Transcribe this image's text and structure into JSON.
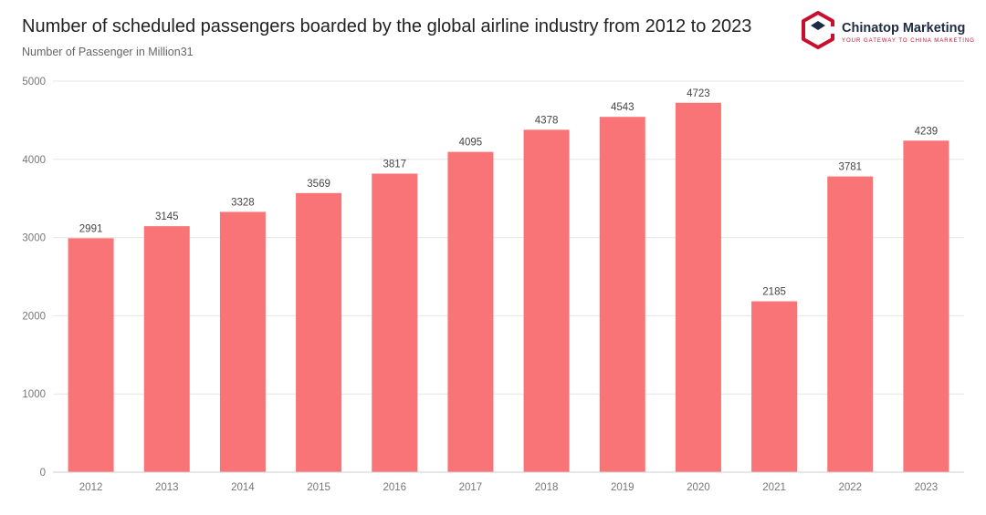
{
  "header": {
    "title": "Number of scheduled passengers boarded by the global airline industry from 2012 to 2023",
    "subtitle": "Number of Passenger in Million31"
  },
  "logo": {
    "name": "Chinatop Marketing",
    "tagline": "YOUR GATEWAY TO CHINA MARKETING",
    "icon": "chinatop-logo-icon"
  },
  "colors": {
    "bar": "#f87476",
    "grid": "#e6e6e6",
    "axis": "#cfcfcf",
    "brand_red": "#c8102e",
    "brand_navy": "#1f2a44"
  },
  "chart_data": {
    "type": "bar",
    "title": "Number of scheduled passengers boarded by the global airline industry from 2012 to 2023",
    "subtitle": "Number of Passenger in Million31",
    "xlabel": "",
    "ylabel": "",
    "categories": [
      "2012",
      "2013",
      "2014",
      "2015",
      "2016",
      "2017",
      "2018",
      "2019",
      "2020",
      "2021",
      "2022",
      "2023"
    ],
    "values": [
      2991,
      3145,
      3328,
      3569,
      3817,
      4095,
      4378,
      4543,
      4723,
      2185,
      3781,
      4239
    ],
    "ylim": [
      0,
      5000
    ],
    "yticks": [
      0,
      1000,
      2000,
      3000,
      4000,
      5000
    ],
    "grid": true,
    "legend": "none"
  }
}
